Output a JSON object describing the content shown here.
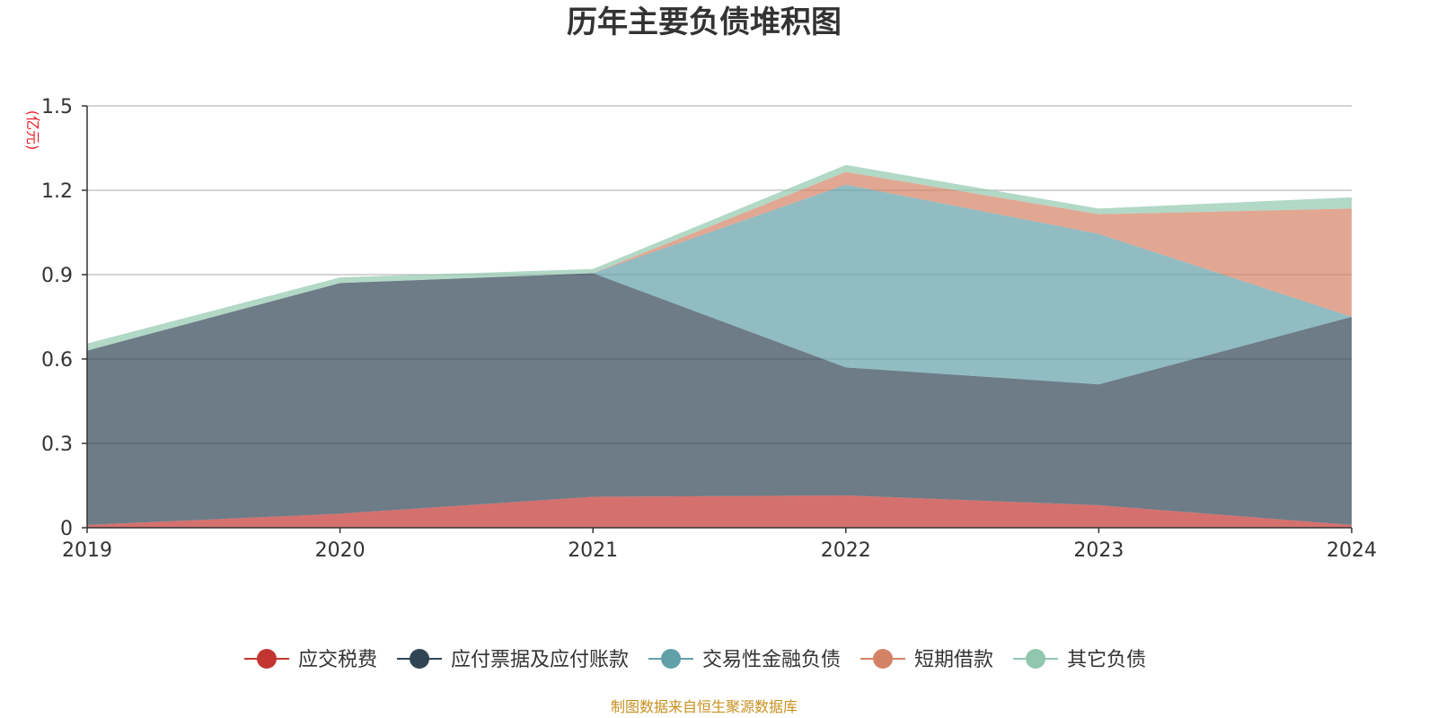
{
  "chart_data": {
    "type": "area",
    "stacked": true,
    "title": "历年主要负债堆积图",
    "unit_label": "(亿元)",
    "x": [
      "2019",
      "2020",
      "2021",
      "2022",
      "2023",
      "2024"
    ],
    "ylim": [
      0,
      1.5
    ],
    "yticks": [
      "0",
      "0.3",
      "0.6",
      "0.9",
      "1.2",
      "1.5"
    ],
    "grid": true,
    "legend_position": "bottom",
    "series": [
      {
        "name": "应交税费",
        "color": "#c23531",
        "values": [
          0.01,
          0.05,
          0.11,
          0.115,
          0.08,
          0.01
        ]
      },
      {
        "name": "应付票据及应付账款",
        "color": "#2f4554",
        "values": [
          0.62,
          0.82,
          0.795,
          0.455,
          0.43,
          0.74
        ]
      },
      {
        "name": "交易性金融负债",
        "color": "#61a0a8",
        "values": [
          0.0,
          0.0,
          0.0,
          0.65,
          0.535,
          0.0
        ]
      },
      {
        "name": "短期借款",
        "color": "#d48265",
        "values": [
          0.0,
          0.0,
          0.0,
          0.045,
          0.07,
          0.385
        ]
      },
      {
        "name": "其它负债",
        "color": "#91c7ae",
        "values": [
          0.025,
          0.02,
          0.015,
          0.025,
          0.02,
          0.04
        ]
      }
    ]
  },
  "source_text": "制图数据来自恒生聚源数据库"
}
